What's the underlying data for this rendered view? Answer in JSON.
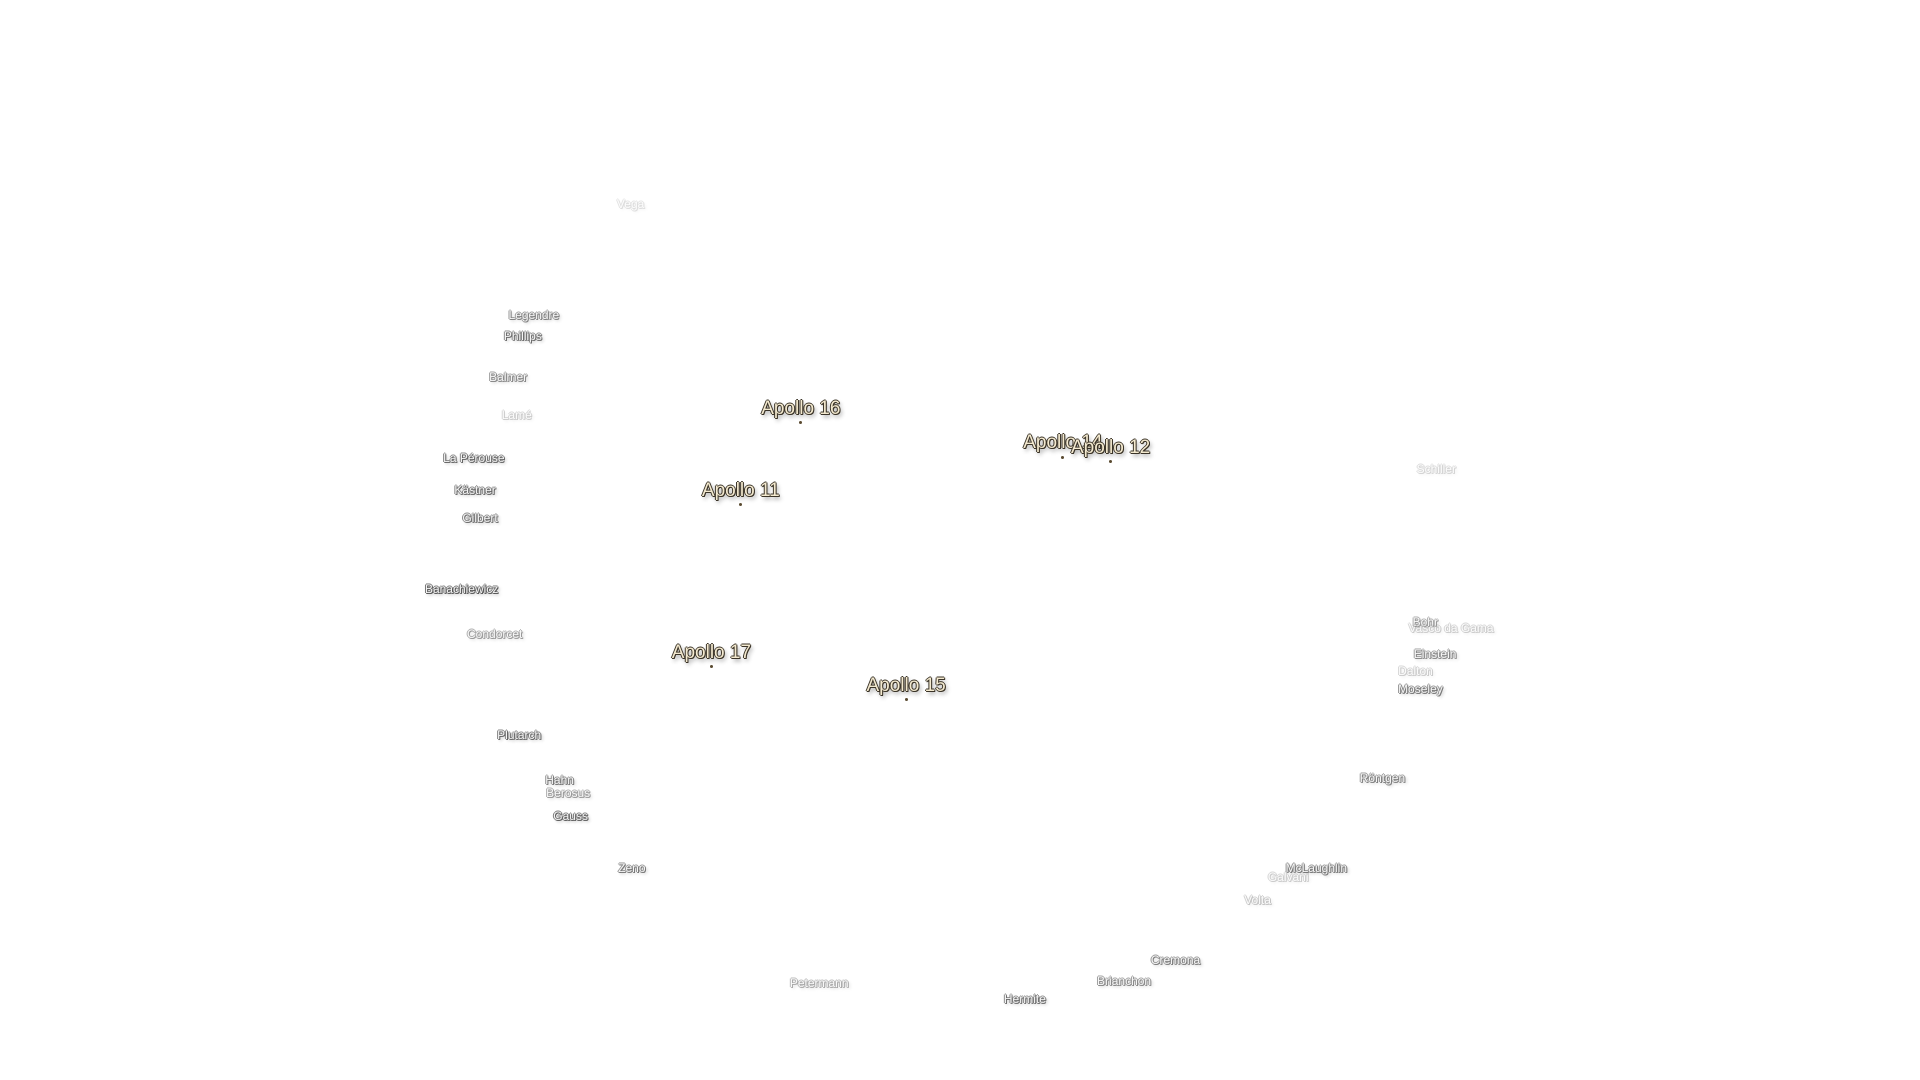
{
  "labels": {
    "apollo_sites": [
      "Apollo 16",
      "Apollo 11",
      "Apollo 17",
      "Apollo 15",
      "Apollo 14",
      "Apollo 12"
    ],
    "craters": [
      "Vega",
      "Legendre",
      "Phillips",
      "Balmer",
      "Lamé",
      "La Pérouse",
      "Kästner",
      "Gilbert",
      "Banachiewicz",
      "Condorcet",
      "Plutarch",
      "Hahn",
      "Berosus",
      "Gauss",
      "Zeno",
      "Petermann",
      "Hermite",
      "Brianchon",
      "Cremona",
      "Volta",
      "Galvani",
      "McLaughlin",
      "Röntgen",
      "Moseley",
      "Dalton",
      "Einstein",
      "Bohr",
      "Vasco da Gama",
      "Schiller"
    ]
  }
}
